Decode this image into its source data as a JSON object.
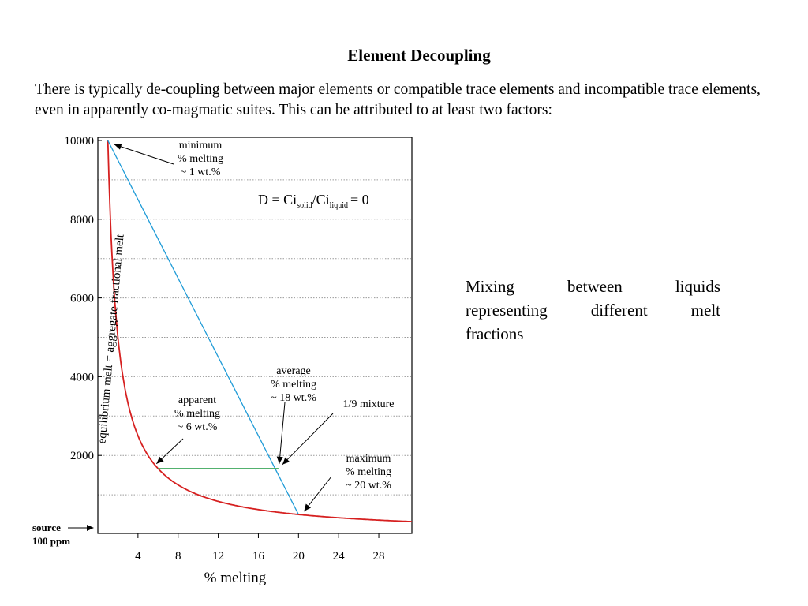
{
  "slide": {
    "title": "Element Decoupling",
    "intro": "There is typically de-coupling between major elements or compatible trace elements and incompatible trace elements, even in apparently co-magmatic suites. This can be attributed to at least two factors:",
    "side_text_lines": [
      "Mixing between liquids",
      "representing different melt",
      "fractions"
    ]
  },
  "chart_data": {
    "type": "line",
    "xlabel": "% melting",
    "ylabel": "",
    "xlim": [
      0,
      31.3
    ],
    "ylim": [
      0,
      10000
    ],
    "x_ticks": [
      4,
      8,
      12,
      16,
      20,
      24,
      28
    ],
    "y_ticks": [
      2000,
      4000,
      6000,
      8000,
      10000
    ],
    "y_tick_labels": [
      "2000",
      "4000",
      "6000",
      "8000",
      "10000"
    ],
    "grid": "horizontal dotted",
    "series": [
      {
        "name": "equilibrium melt = aggregate fractional melt",
        "color": "#d62020",
        "x": [
          1,
          1.5,
          2,
          3,
          4,
          5,
          6,
          8,
          10,
          12,
          14,
          16,
          18,
          20,
          24,
          28,
          31.3
        ],
        "y": [
          10000,
          6667,
          5000,
          3333,
          2500,
          2000,
          1667,
          1250,
          1000,
          833,
          714,
          625,
          556,
          500,
          417,
          357,
          319
        ]
      },
      {
        "name": "",
        "color": "#1f9bd7",
        "x": [
          1,
          20
        ],
        "y": [
          10000,
          500
        ]
      },
      {
        "name": "",
        "color": "#3aa65a",
        "x": [
          6,
          18
        ],
        "y": [
          1667,
          1667
        ]
      }
    ],
    "annotations": [
      {
        "lines": [
          "minimum",
          "% melting",
          "~ 1 wt.%"
        ],
        "x": 1,
        "y": 10000
      },
      {
        "lines": [
          "apparent",
          "% melting",
          "~ 6 wt.%"
        ],
        "x": 6,
        "y": 1667
      },
      {
        "lines": [
          "average",
          "% melting",
          "~ 18 wt.%"
        ],
        "x": 18,
        "y": 1667
      },
      {
        "lines": [
          "1/9 mixture"
        ],
        "x": 18,
        "y": 1667
      },
      {
        "lines": [
          "maximum",
          "% melting",
          "~ 20 wt.%"
        ],
        "x": 20,
        "y": 500
      }
    ],
    "equation": {
      "lhs": "D = Ci",
      "sub1": "solid",
      "mid": "/Ci",
      "sub2": "liquid",
      "rhs": "= 0"
    },
    "source_label": [
      "source",
      "100 ppm"
    ],
    "colors": {
      "red": "#d62020",
      "blue": "#1f9bd7",
      "green": "#3aa65a",
      "grid": "#9a9a9a"
    }
  }
}
